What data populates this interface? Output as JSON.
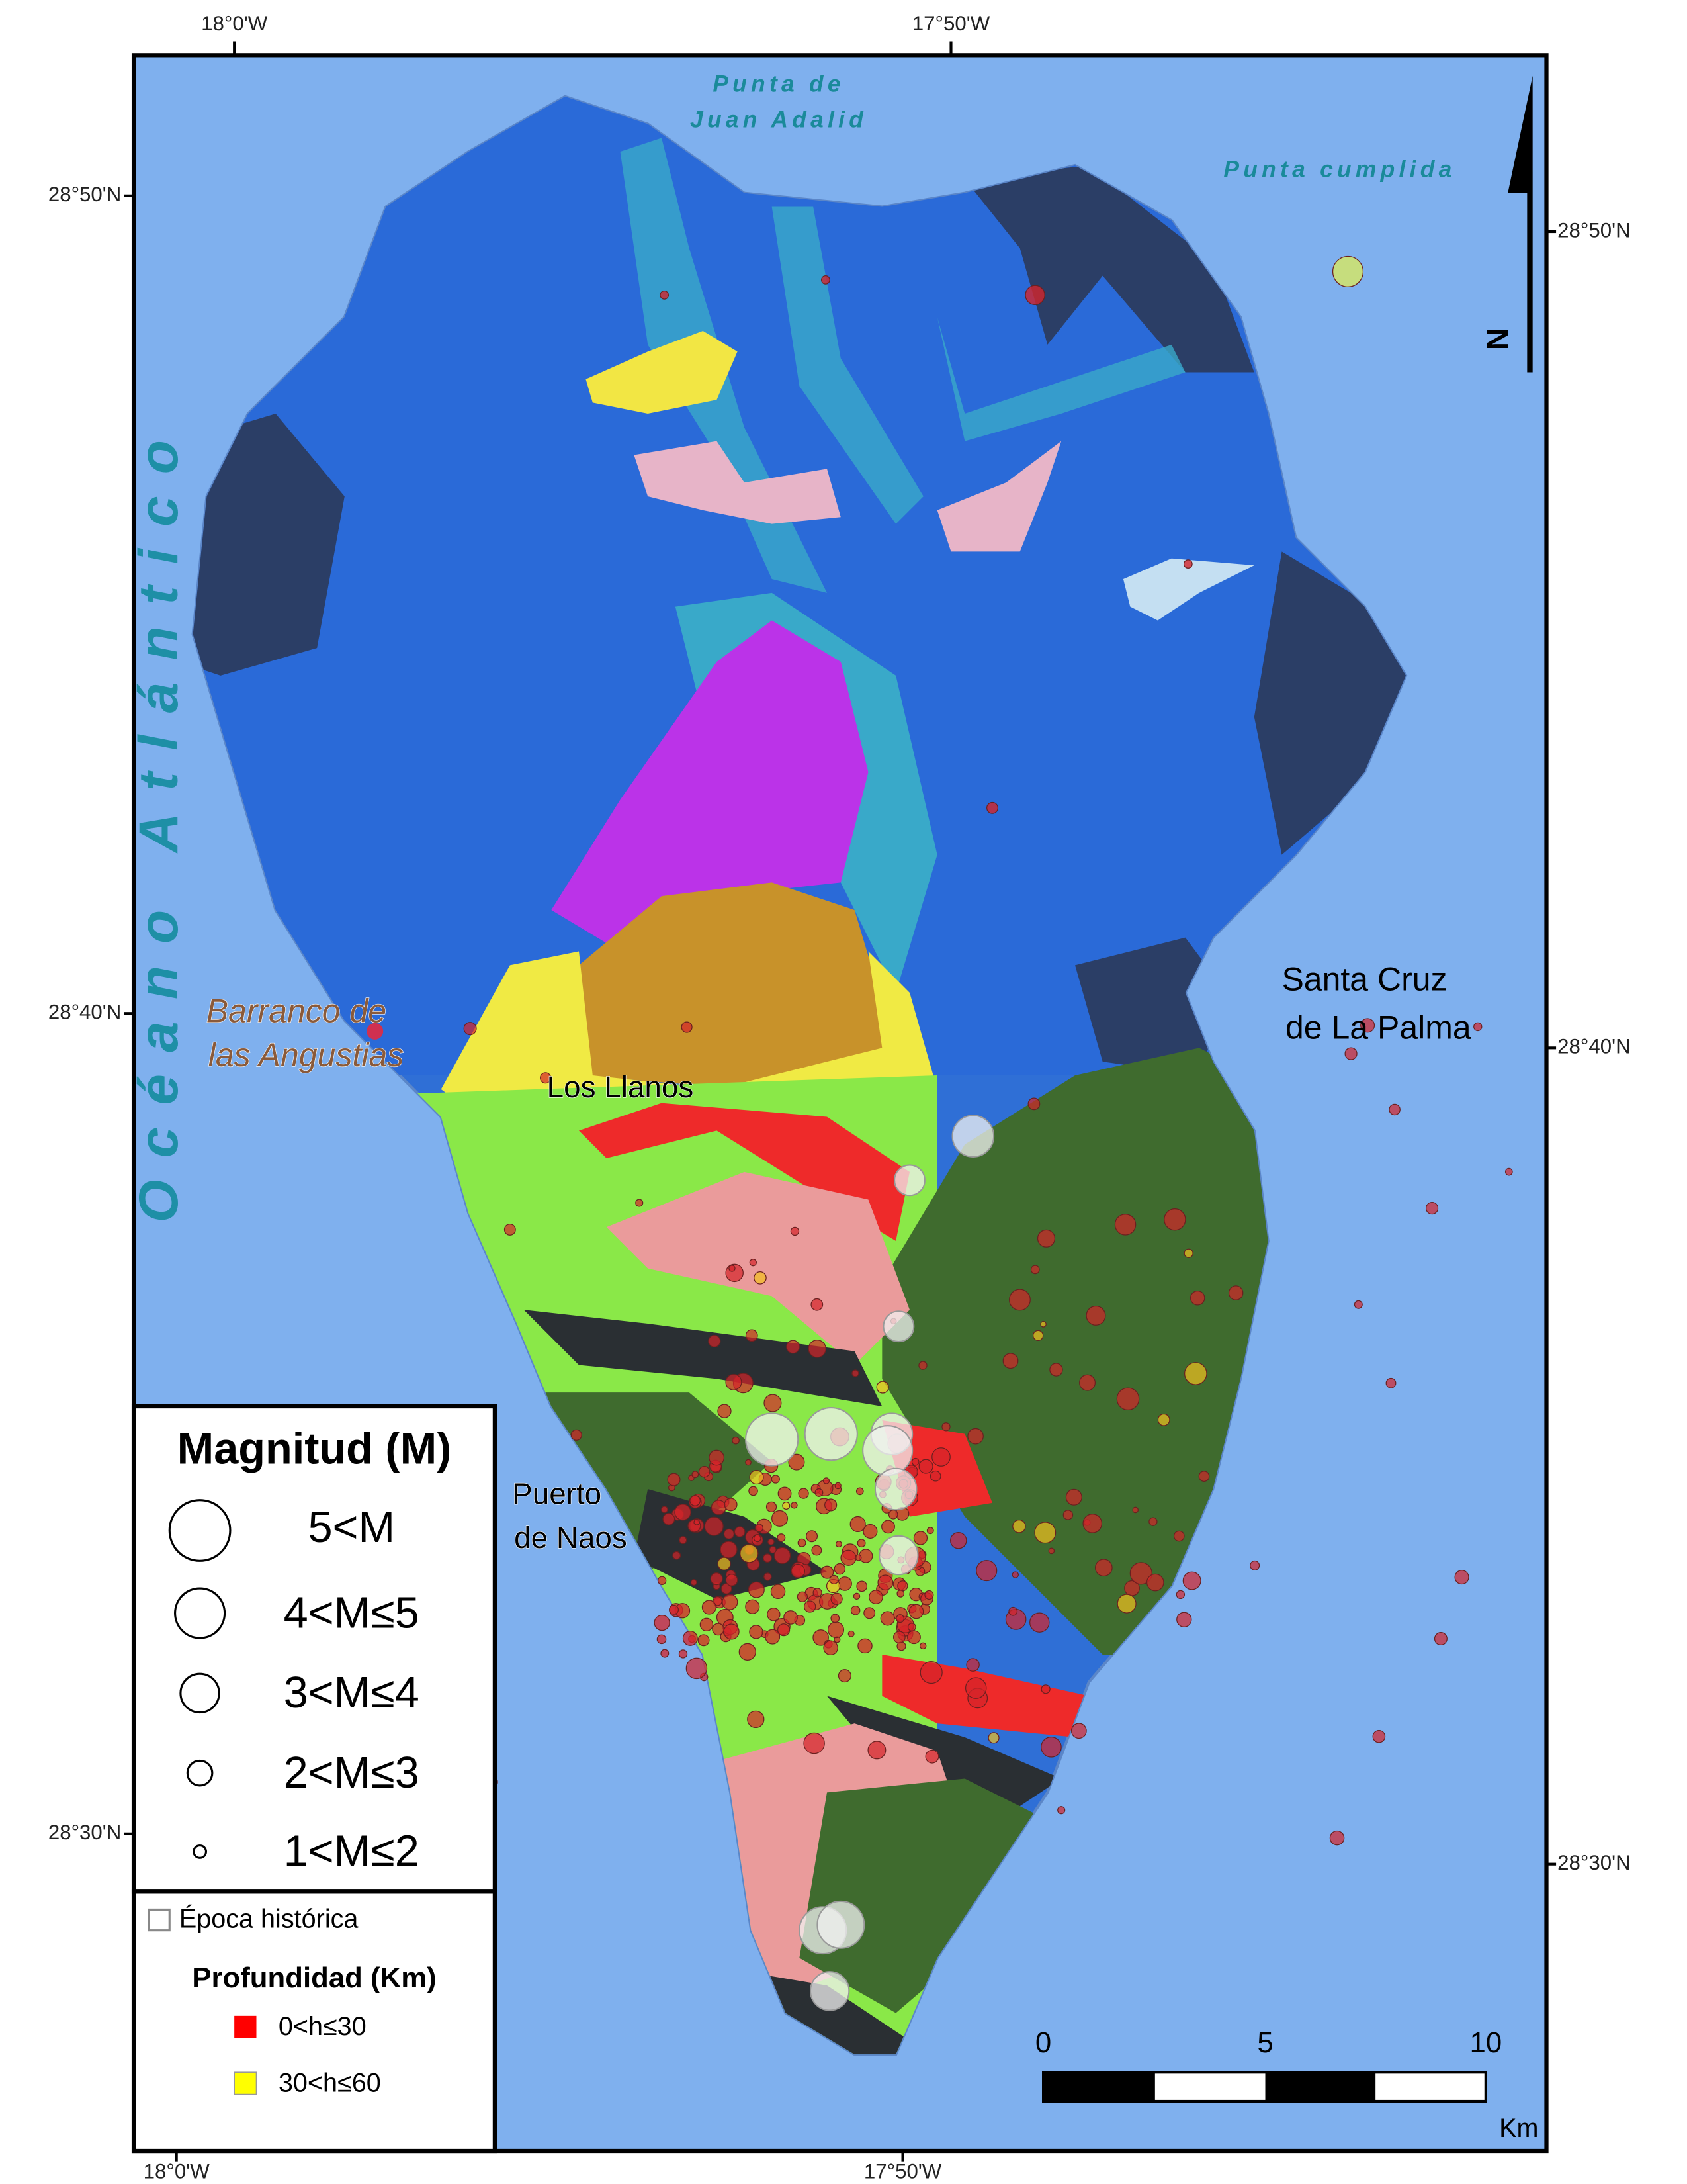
{
  "frame_labels": {
    "top": [
      "18°0'W",
      "17°50'W"
    ],
    "bottom": [
      "18°0'W",
      "17°50'W"
    ],
    "left": [
      "28°50'N",
      "28°40'N",
      "28°30'N"
    ],
    "right": [
      "28°50'N",
      "28°40'N",
      "28°30'N"
    ]
  },
  "sea_labels": {
    "punta_adalid": [
      "Punta de",
      "Juan Adalid"
    ],
    "punta_cumplida": "Punta cumplida",
    "ocean": "Océano Atlántico"
  },
  "places": {
    "barranco": [
      "Barranco de",
      "las Angustias"
    ],
    "los_llanos": "Los Llanos",
    "santa_cruz": [
      "Santa Cruz",
      "de La Palma"
    ],
    "puerto_naos": [
      "Puerto",
      "de Naos"
    ]
  },
  "north_label": "N",
  "legend": {
    "title": "Magnitud (M)",
    "magnitudes": [
      "5<M",
      "4<M≤5",
      "3<M≤4",
      "2<M≤3",
      "1<M≤2"
    ],
    "historic": "Época histórica",
    "depth_title": "Profundidad (Km)",
    "depths": [
      "0<h≤30",
      "30<h≤60"
    ]
  },
  "scale_bar": {
    "labels": [
      "0",
      "5",
      "10"
    ],
    "unit": "Km"
  }
}
